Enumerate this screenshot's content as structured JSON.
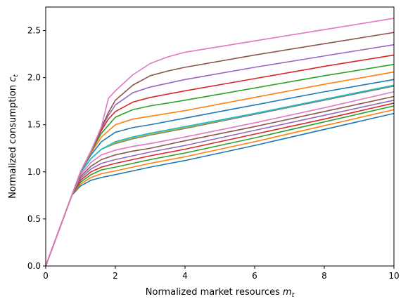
{
  "chart_data": {
    "type": "line",
    "xlabel": "Normalized market resources",
    "xlabel_math": "m",
    "xlabel_sub": "t",
    "ylabel": "Normalized consumption",
    "ylabel_math": "c",
    "ylabel_sub": "t",
    "xlim": [
      0,
      10
    ],
    "ylim": [
      0,
      2.75
    ],
    "xticks": [
      0,
      2,
      4,
      6,
      8,
      10
    ],
    "xtick_labels": [
      "0",
      "2",
      "4",
      "6",
      "8",
      "10"
    ],
    "yticks": [
      0.0,
      0.5,
      1.0,
      1.5,
      2.0,
      2.5
    ],
    "ytick_labels": [
      "0.0",
      "0.5",
      "1.0",
      "1.5",
      "2.0",
      "2.5"
    ],
    "grid": false,
    "legend": "none",
    "series": [
      {
        "color": "#1f77b4",
        "x": [
          0,
          0.75,
          1.0,
          1.3,
          1.6,
          2.0,
          2.5,
          3.0,
          4.0,
          6.0,
          8.0,
          10.0
        ],
        "y": [
          0,
          0.75,
          0.85,
          0.91,
          0.94,
          0.97,
          1.01,
          1.05,
          1.12,
          1.28,
          1.45,
          1.62
        ]
      },
      {
        "color": "#ff7f0e",
        "x": [
          0,
          0.75,
          1.0,
          1.3,
          1.6,
          2.0,
          2.5,
          3.0,
          4.0,
          6.0,
          8.0,
          10.0
        ],
        "y": [
          0,
          0.75,
          0.87,
          0.94,
          0.98,
          1.01,
          1.05,
          1.09,
          1.16,
          1.32,
          1.49,
          1.66
        ]
      },
      {
        "color": "#2ca02c",
        "x": [
          0,
          0.75,
          1.0,
          1.3,
          1.6,
          2.0,
          2.5,
          3.0,
          4.0,
          6.0,
          8.0,
          10.0
        ],
        "y": [
          0,
          0.75,
          0.89,
          0.97,
          1.02,
          1.05,
          1.09,
          1.13,
          1.2,
          1.36,
          1.53,
          1.7
        ]
      },
      {
        "color": "#d62728",
        "x": [
          0,
          0.75,
          1.0,
          1.3,
          1.6,
          2.0,
          2.5,
          3.0,
          4.0,
          6.0,
          8.0,
          10.0
        ],
        "y": [
          0,
          0.75,
          0.91,
          1.0,
          1.05,
          1.09,
          1.13,
          1.17,
          1.24,
          1.4,
          1.56,
          1.73
        ]
      },
      {
        "color": "#9467bd",
        "x": [
          0,
          0.75,
          1.0,
          1.3,
          1.6,
          2.0,
          2.5,
          3.0,
          4.0,
          6.0,
          8.0,
          10.0
        ],
        "y": [
          0,
          0.75,
          0.93,
          1.03,
          1.09,
          1.13,
          1.17,
          1.21,
          1.28,
          1.44,
          1.6,
          1.76
        ]
      },
      {
        "color": "#8c564b",
        "x": [
          0,
          0.75,
          1.0,
          1.3,
          1.6,
          2.0,
          2.5,
          3.0,
          4.0,
          6.0,
          8.0,
          10.0
        ],
        "y": [
          0,
          0.75,
          0.95,
          1.06,
          1.13,
          1.18,
          1.22,
          1.25,
          1.33,
          1.48,
          1.64,
          1.8
        ]
      },
      {
        "color": "#e377c2",
        "x": [
          0,
          0.75,
          1.0,
          1.3,
          1.6,
          2.0,
          2.5,
          3.0,
          4.0,
          6.0,
          8.0,
          10.0
        ],
        "y": [
          0,
          0.75,
          0.97,
          1.1,
          1.18,
          1.23,
          1.27,
          1.3,
          1.37,
          1.52,
          1.68,
          1.85
        ]
      },
      {
        "color": "#7f7f7f",
        "x": [
          0,
          0.75,
          1.0,
          1.3,
          1.6,
          2.0,
          2.5,
          3.0,
          4.0,
          6.0,
          8.0,
          10.0
        ],
        "y": [
          0,
          0.75,
          0.99,
          1.14,
          1.24,
          1.3,
          1.35,
          1.39,
          1.46,
          1.61,
          1.76,
          1.91
        ]
      },
      {
        "color": "#bcbd22",
        "x": [
          0,
          0.75,
          1.0,
          1.3,
          1.6,
          2.0,
          2.5,
          3.0,
          4.0,
          6.0,
          8.0,
          10.0
        ],
        "y": [
          0,
          0.75,
          0.99,
          1.14,
          1.24,
          1.31,
          1.36,
          1.4,
          1.47,
          1.62,
          1.77,
          1.92
        ]
      },
      {
        "color": "#17becf",
        "x": [
          0,
          0.75,
          1.0,
          1.3,
          1.6,
          2.0,
          2.5,
          3.0,
          4.0,
          6.0,
          8.0,
          10.0
        ],
        "y": [
          0,
          0.75,
          0.99,
          1.14,
          1.24,
          1.32,
          1.37,
          1.41,
          1.48,
          1.62,
          1.77,
          1.92
        ]
      },
      {
        "color": "#1f77b4",
        "x": [
          0,
          0.75,
          1.0,
          1.3,
          1.6,
          2.0,
          2.5,
          3.0,
          4.0,
          6.0,
          8.0,
          10.0
        ],
        "y": [
          0,
          0.75,
          1.0,
          1.18,
          1.32,
          1.42,
          1.47,
          1.5,
          1.57,
          1.71,
          1.85,
          1.98
        ]
      },
      {
        "color": "#ff7f0e",
        "x": [
          0,
          0.75,
          1.0,
          1.3,
          1.6,
          2.0,
          2.5,
          3.0,
          4.0,
          6.0,
          8.0,
          10.0
        ],
        "y": [
          0,
          0.75,
          1.0,
          1.2,
          1.37,
          1.5,
          1.56,
          1.59,
          1.65,
          1.79,
          1.93,
          2.06
        ]
      },
      {
        "color": "#2ca02c",
        "x": [
          0,
          0.75,
          1.0,
          1.3,
          1.6,
          2.0,
          2.5,
          3.0,
          4.0,
          6.0,
          8.0,
          10.0
        ],
        "y": [
          0,
          0.75,
          1.0,
          1.21,
          1.41,
          1.58,
          1.66,
          1.7,
          1.76,
          1.89,
          2.02,
          2.14
        ]
      },
      {
        "color": "#d62728",
        "x": [
          0,
          0.75,
          1.0,
          1.3,
          1.6,
          1.8,
          2.0,
          2.5,
          3.0,
          4.0,
          6.0,
          8.0,
          10.0
        ],
        "y": [
          0,
          0.75,
          1.0,
          1.22,
          1.44,
          1.56,
          1.64,
          1.74,
          1.79,
          1.86,
          1.99,
          2.12,
          2.24
        ]
      },
      {
        "color": "#9467bd",
        "x": [
          0,
          0.75,
          1.0,
          1.3,
          1.6,
          1.8,
          2.0,
          2.5,
          3.0,
          4.0,
          6.0,
          8.0,
          10.0
        ],
        "y": [
          0,
          0.75,
          1.0,
          1.22,
          1.46,
          1.6,
          1.71,
          1.84,
          1.9,
          1.98,
          2.11,
          2.23,
          2.35
        ]
      },
      {
        "color": "#8c564b",
        "x": [
          0,
          0.75,
          1.0,
          1.3,
          1.6,
          1.8,
          2.0,
          2.5,
          3.0,
          3.5,
          4.0,
          6.0,
          8.0,
          10.0
        ],
        "y": [
          0,
          0.75,
          1.0,
          1.22,
          1.47,
          1.63,
          1.76,
          1.92,
          2.02,
          2.07,
          2.11,
          2.24,
          2.36,
          2.48
        ]
      },
      {
        "color": "#e377c2",
        "x": [
          0,
          0.75,
          1.0,
          1.3,
          1.6,
          1.8,
          2.0,
          2.5,
          3.0,
          3.5,
          4.0,
          6.0,
          8.0,
          10.0
        ],
        "y": [
          0,
          0.75,
          1.0,
          1.22,
          1.48,
          1.78,
          1.86,
          2.03,
          2.15,
          2.22,
          2.27,
          2.39,
          2.51,
          2.63
        ]
      }
    ]
  }
}
